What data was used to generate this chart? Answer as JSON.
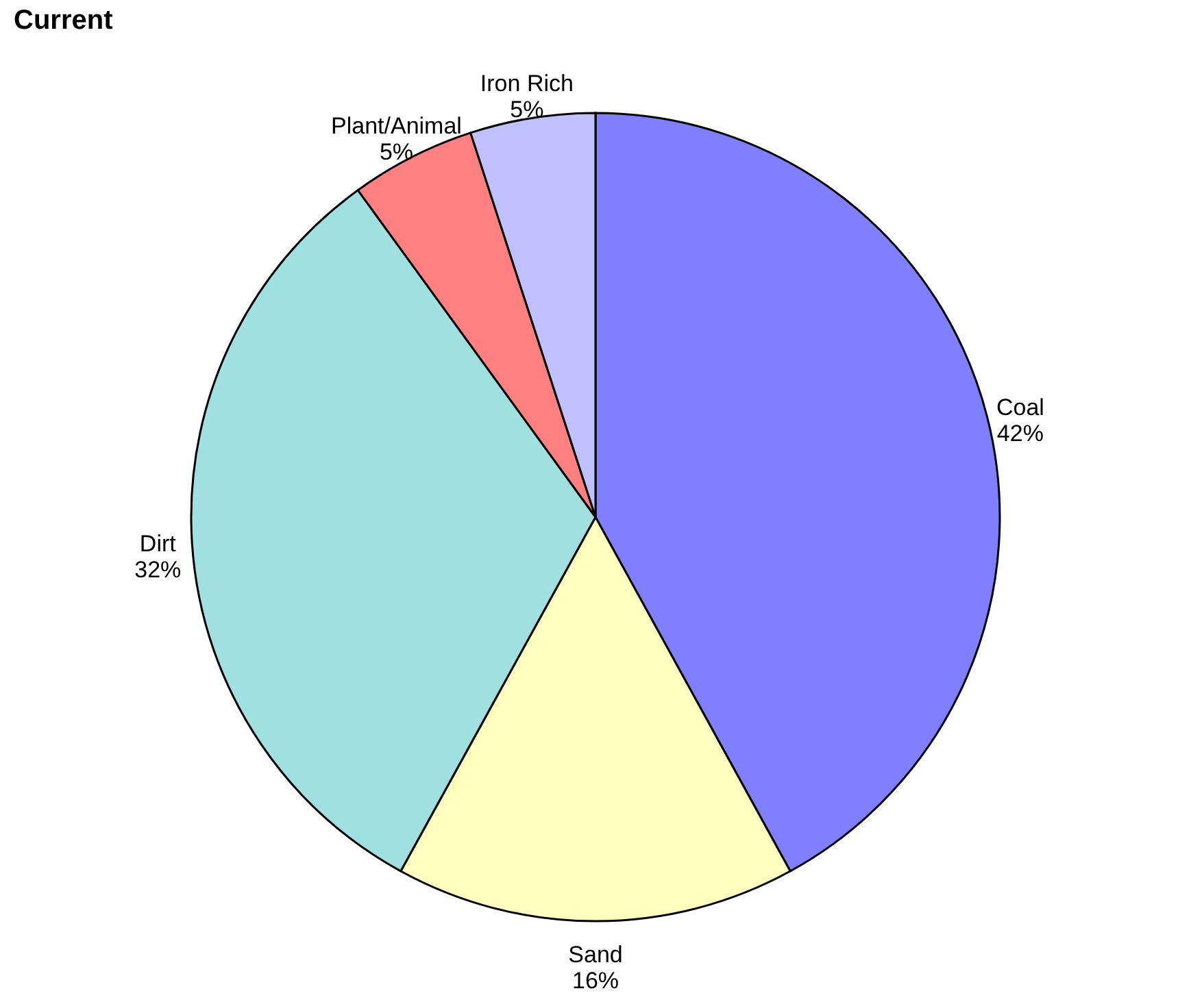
{
  "chart_data": {
    "type": "pie",
    "title": "Current",
    "categories": [
      "Coal",
      "Sand",
      "Dirt",
      "Plant/Animal",
      "Iron Rich"
    ],
    "values": [
      42,
      16,
      32,
      5,
      5
    ],
    "value_labels": [
      "42%",
      "16%",
      "32%",
      "5%",
      "5%"
    ],
    "colors": [
      "#8080ff",
      "#ffffc0",
      "#a0e0e0",
      "#ff8080",
      "#c0c0ff"
    ],
    "legend": false
  }
}
